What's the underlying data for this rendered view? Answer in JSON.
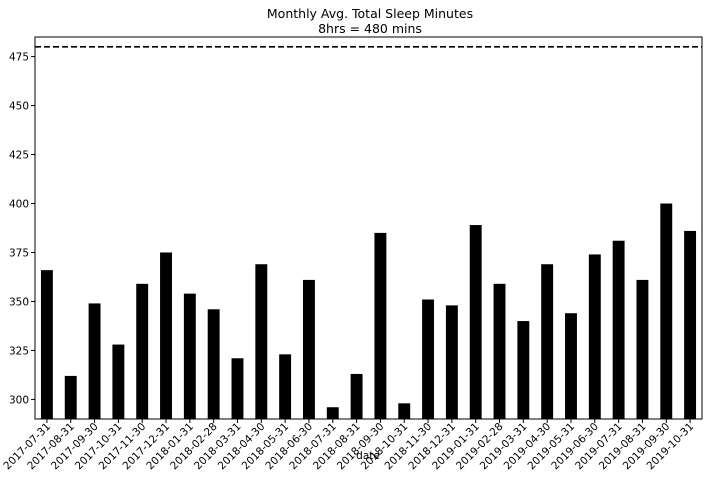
{
  "chart_data": {
    "type": "bar",
    "title": "Monthly Avg. Total Sleep Minutes",
    "subtitle": "8hrs = 480 mins",
    "xlabel": "date",
    "ylabel": "",
    "categories": [
      "2017-07-31",
      "2017-08-31",
      "2017-09-30",
      "2017-10-31",
      "2017-11-30",
      "2017-12-31",
      "2018-01-31",
      "2018-02-28",
      "2018-03-31",
      "2018-04-30",
      "2018-05-31",
      "2018-06-30",
      "2018-07-31",
      "2018-08-31",
      "2018-09-30",
      "2018-10-31",
      "2018-11-30",
      "2018-12-31",
      "2019-01-31",
      "2019-02-28",
      "2019-03-31",
      "2019-04-30",
      "2019-05-31",
      "2019-06-30",
      "2019-07-31",
      "2019-08-31",
      "2019-09-30",
      "2019-10-31"
    ],
    "values": [
      366,
      312,
      349,
      328,
      359,
      375,
      354,
      346,
      321,
      369,
      323,
      361,
      296,
      313,
      385,
      298,
      351,
      348,
      389,
      359,
      340,
      369,
      344,
      374,
      381,
      361,
      400,
      386
    ],
    "ylim": [
      290,
      485
    ],
    "yticks": [
      300,
      325,
      350,
      375,
      400,
      425,
      450,
      475
    ],
    "reference_line": {
      "value": 480,
      "style": "dashed"
    },
    "grid": false,
    "legend": "none",
    "bar_color": "#000000"
  }
}
